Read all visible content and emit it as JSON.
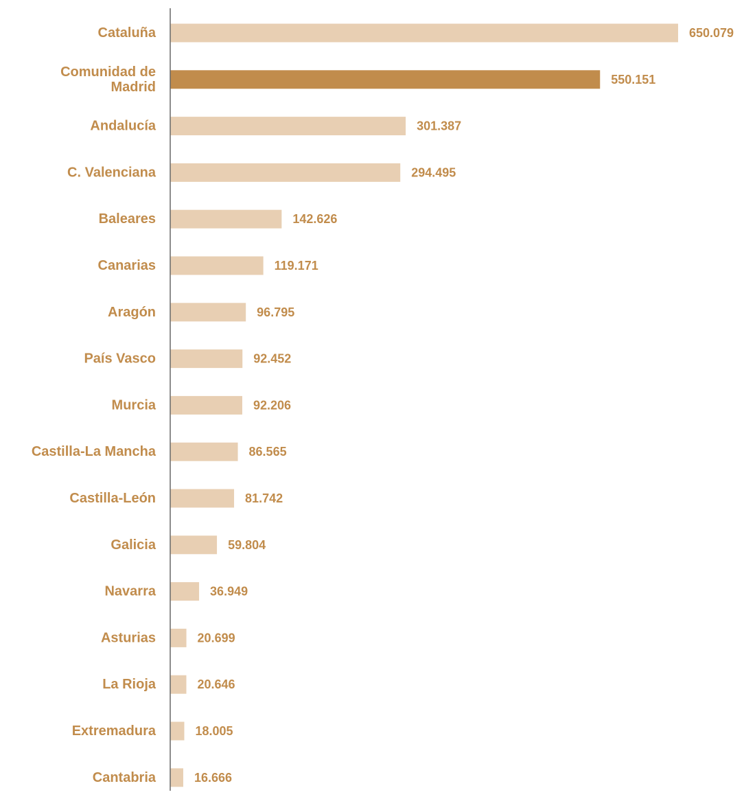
{
  "chart_data": {
    "type": "bar",
    "orientation": "horizontal",
    "title": "",
    "xlabel": "",
    "ylabel": "",
    "categories": [
      [
        "Cataluña"
      ],
      [
        "Comunidad de",
        "Madrid"
      ],
      [
        "Andalucía"
      ],
      [
        "C. Valenciana"
      ],
      [
        "Baleares"
      ],
      [
        "Canarias"
      ],
      [
        "Aragón"
      ],
      [
        "País Vasco"
      ],
      [
        "Murcia"
      ],
      [
        "Castilla-La Mancha"
      ],
      [
        "Castilla-León"
      ],
      [
        "Galicia"
      ],
      [
        "Navarra"
      ],
      [
        "Asturias"
      ],
      [
        "La Rioja"
      ],
      [
        "Extremadura"
      ],
      [
        "Cantabria"
      ]
    ],
    "values": [
      650079,
      550151,
      301387,
      294495,
      142626,
      119171,
      96795,
      92452,
      92206,
      86565,
      81742,
      59804,
      36949,
      20699,
      20646,
      18005,
      16666
    ],
    "value_labels": [
      "650.079",
      "550.151",
      "301.387",
      "294.495",
      "142.626",
      "119.171",
      "96.795",
      "92.452",
      "92.206",
      "86.565",
      "81.742",
      "59.804",
      "36.949",
      "20.699",
      "20.646",
      "18.005",
      "16.666"
    ],
    "highlight_index": 1,
    "xlim": [
      0,
      650079
    ],
    "grid": false,
    "legend": "none",
    "colors": {
      "bar": "#e8cfb3",
      "highlight": "#c18c4c",
      "label": "#c18c4c",
      "axis": "#666666"
    }
  }
}
